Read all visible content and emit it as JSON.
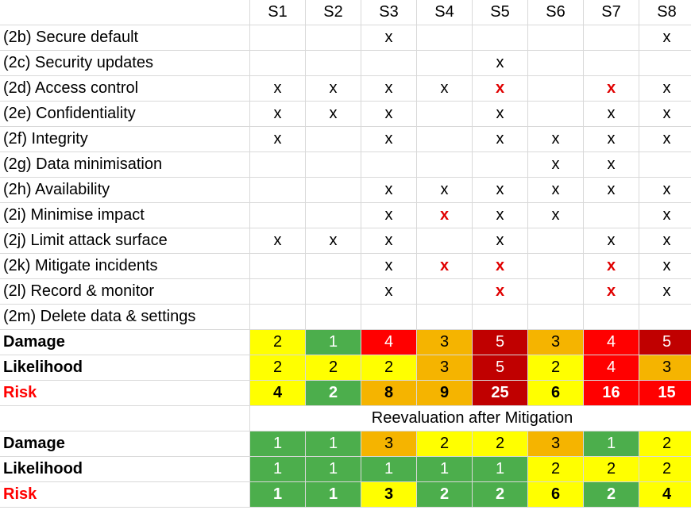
{
  "columns": [
    "S1",
    "S2",
    "S3",
    "S4",
    "S5",
    "S6",
    "S7",
    "S8"
  ],
  "requirements": [
    {
      "label": "(2b) Secure default",
      "marks": [
        "",
        "",
        "x",
        "",
        "",
        "",
        "",
        "x"
      ]
    },
    {
      "label": "(2c) Security updates",
      "marks": [
        "",
        "",
        "",
        "",
        "x",
        "",
        "",
        ""
      ]
    },
    {
      "label": "(2d) Access control",
      "marks": [
        "x",
        "x",
        "x",
        "x",
        "X",
        "",
        "X",
        "x"
      ]
    },
    {
      "label": "(2e) Confidentiality",
      "marks": [
        "x",
        "x",
        "x",
        "",
        "x",
        "",
        "x",
        "x"
      ]
    },
    {
      "label": "(2f) Integrity",
      "marks": [
        "x",
        "",
        "x",
        "",
        "x",
        "x",
        "x",
        "x"
      ]
    },
    {
      "label": "(2g) Data minimisation",
      "marks": [
        "",
        "",
        "",
        "",
        "",
        "x",
        "x",
        ""
      ]
    },
    {
      "label": "(2h) Availability",
      "marks": [
        "",
        "",
        "x",
        "x",
        "x",
        "x",
        "x",
        "x"
      ]
    },
    {
      "label": "(2i) Minimise impact",
      "marks": [
        "",
        "",
        "x",
        "X",
        "x",
        "x",
        "",
        "x"
      ]
    },
    {
      "label": "(2j) Limit attack surface",
      "marks": [
        "x",
        "x",
        "x",
        "",
        "x",
        "",
        "x",
        "x"
      ]
    },
    {
      "label": "(2k) Mitigate incidents",
      "marks": [
        "",
        "",
        "x",
        "X",
        "X",
        "",
        "X",
        "x"
      ]
    },
    {
      "label": "(2l) Record & monitor",
      "marks": [
        "",
        "",
        "x",
        "",
        "X",
        "",
        "X",
        "x"
      ]
    },
    {
      "label": "(2m) Delete data & settings",
      "marks": [
        "",
        "",
        "",
        "",
        "",
        "",
        "",
        ""
      ]
    }
  ],
  "mark_style": {
    "normal": "x",
    "highlighted": "X (red, bold)"
  },
  "assessment": {
    "damage": {
      "label": "Damage",
      "values": [
        "2",
        "1",
        "4",
        "3",
        "5",
        "3",
        "4",
        "5"
      ]
    },
    "likelihood": {
      "label": "Likelihood",
      "values": [
        "2",
        "2",
        "2",
        "3",
        "5",
        "2",
        "4",
        "3"
      ]
    },
    "risk": {
      "label": "Risk",
      "values": [
        "4",
        "2",
        "8",
        "9",
        "25",
        "6",
        "16",
        "15"
      ]
    }
  },
  "reevaluation_title": "Reevaluation after Mitigation",
  "reevaluation": {
    "damage": {
      "label": "Damage",
      "values": [
        "1",
        "1",
        "3",
        "2",
        "2",
        "3",
        "1",
        "2"
      ]
    },
    "likelihood": {
      "label": "Likelihood",
      "values": [
        "1",
        "1",
        "1",
        "1",
        "1",
        "2",
        "2",
        "2"
      ]
    },
    "risk": {
      "label": "Risk",
      "values": [
        "1",
        "1",
        "3",
        "2",
        "2",
        "6",
        "2",
        "4"
      ]
    }
  },
  "colors": {
    "green": "#4cae4c",
    "yellow": "#ffff00",
    "orange": "#f5b400",
    "red": "#ff0000",
    "dark_red": "#c00000",
    "risk_label": "#ff0000",
    "mark_highlight": "#e00000"
  }
}
